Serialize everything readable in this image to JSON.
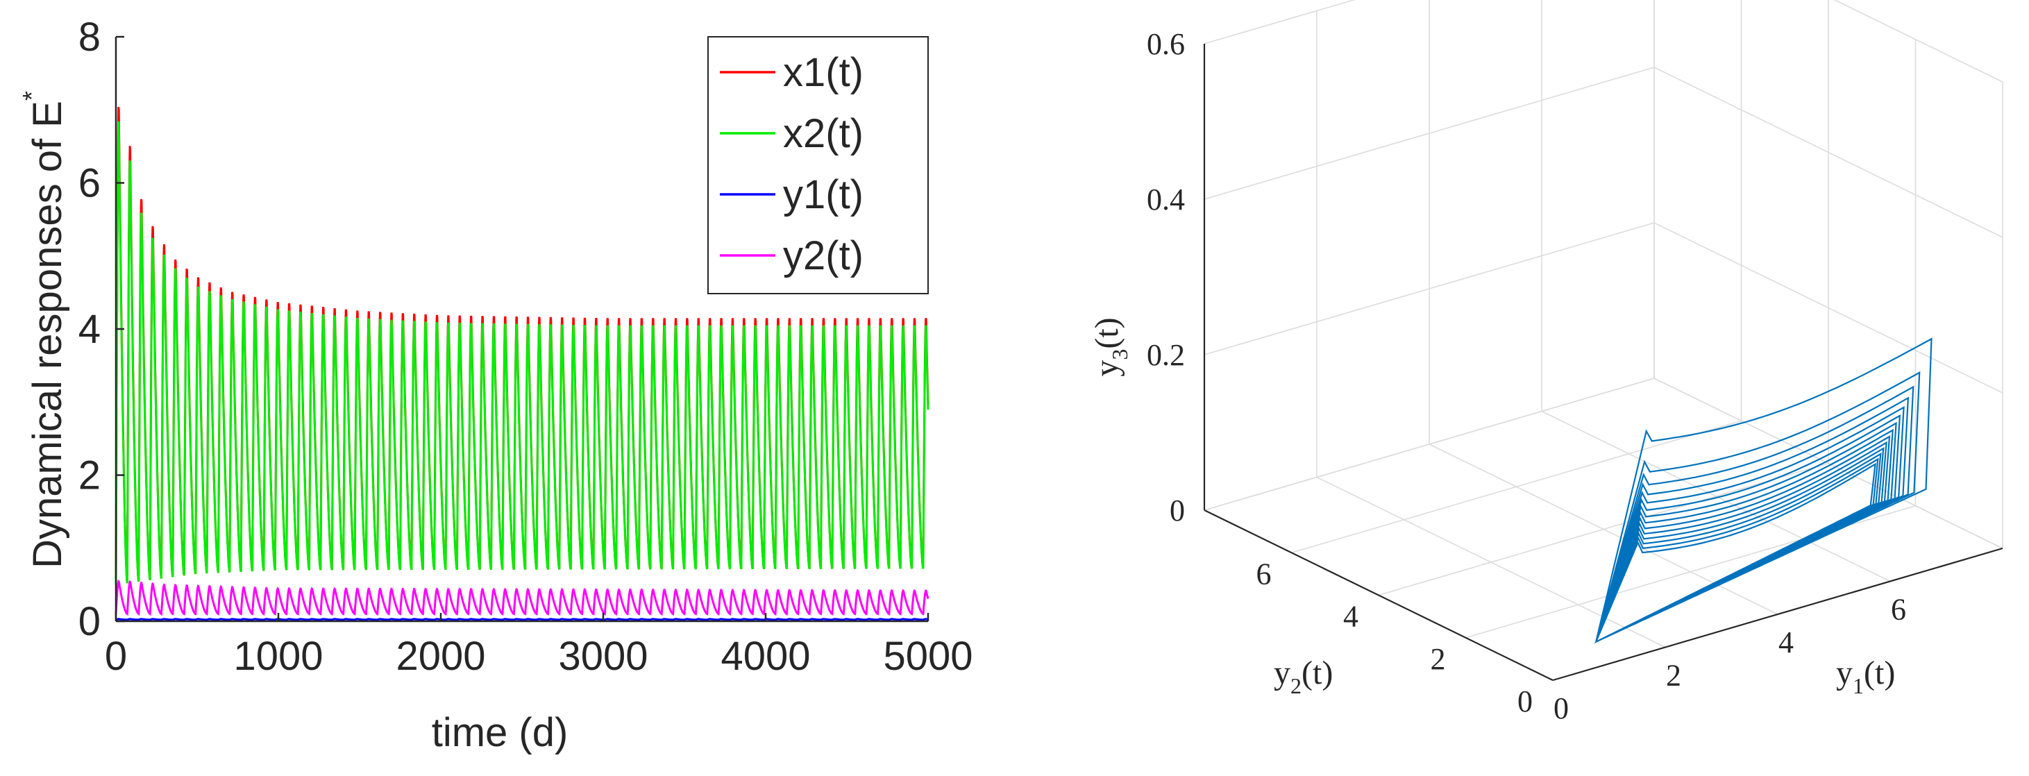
{
  "chart_data": [
    {
      "type": "line",
      "xlabel": "time (d)",
      "ylabel": "Dynamical responses of E",
      "ylabel_superscript": "*",
      "xlim": [
        0,
        5000
      ],
      "ylim": [
        0,
        8
      ],
      "xticks": [
        "0",
        "1000",
        "2000",
        "3000",
        "4000",
        "5000"
      ],
      "yticks": [
        "0",
        "2",
        "4",
        "6",
        "8"
      ],
      "xtick_values": [
        0,
        1000,
        2000,
        3000,
        4000,
        5000
      ],
      "ytick_values": [
        0,
        2,
        4,
        6,
        8
      ],
      "grid": false,
      "legend_position": "top-right",
      "period": 70,
      "series": [
        {
          "name": "x1(t)",
          "color": "#ff0000",
          "peaks": [
            [
              50,
              7.1
            ],
            [
              120,
              6.05
            ],
            [
              200,
              5.55
            ],
            [
              280,
              5.25
            ],
            [
              360,
              5.0
            ],
            [
              500,
              4.75
            ],
            [
              700,
              4.55
            ],
            [
              1000,
              4.4
            ],
            [
              1500,
              4.28
            ],
            [
              2000,
              4.22
            ],
            [
              3000,
              4.18
            ],
            [
              5000,
              4.18
            ]
          ],
          "troughs": [
            [
              0,
              0.5
            ],
            [
              500,
              0.65
            ],
            [
              1000,
              0.7
            ],
            [
              5000,
              0.72
            ]
          ]
        },
        {
          "name": "x2(t)",
          "color": "#00ee00",
          "peaks": [
            [
              50,
              6.9
            ],
            [
              120,
              5.85
            ],
            [
              200,
              5.38
            ],
            [
              280,
              5.1
            ],
            [
              360,
              4.88
            ],
            [
              500,
              4.62
            ],
            [
              700,
              4.45
            ],
            [
              1000,
              4.3
            ],
            [
              1500,
              4.18
            ],
            [
              2000,
              4.12
            ],
            [
              3000,
              4.08
            ],
            [
              5000,
              4.08
            ]
          ],
          "troughs": [
            [
              0,
              0.5
            ],
            [
              500,
              0.65
            ],
            [
              1000,
              0.7
            ],
            [
              5000,
              0.72
            ]
          ]
        },
        {
          "name": "y1(t)",
          "color": "#0000ff",
          "peaks": [
            [
              0,
              0.03
            ],
            [
              5000,
              0.03
            ]
          ],
          "troughs": [
            [
              0,
              0.02
            ],
            [
              5000,
              0.02
            ]
          ]
        },
        {
          "name": "y2(t)",
          "color": "#ff00ff",
          "peaks": [
            [
              50,
              0.55
            ],
            [
              300,
              0.5
            ],
            [
              1000,
              0.45
            ],
            [
              5000,
              0.42
            ]
          ],
          "troughs": [
            [
              0,
              0.1
            ],
            [
              5000,
              0.1
            ]
          ]
        }
      ]
    },
    {
      "type": "line3d",
      "xlabel": "y",
      "xlabel_sub": "1",
      "xlabel_suffix": "(t)",
      "ylabel": "y",
      "ylabel_sub": "2",
      "ylabel_suffix": "(t)",
      "zlabel": "y",
      "zlabel_sub": "3",
      "zlabel_suffix": "(t)",
      "x_ticks": [
        "0",
        "2",
        "4",
        "6"
      ],
      "y_ticks": [
        "0",
        "2",
        "4",
        "6"
      ],
      "z_ticks": [
        "0",
        "0.2",
        "0.4",
        "0.6"
      ],
      "xlim": [
        0,
        8
      ],
      "ylim": [
        0,
        8
      ],
      "zlim": [
        0,
        0.6
      ],
      "grid": true,
      "color": "#0072bd",
      "trajectory_outer": [
        [
          1.0,
          0.0,
          0.3
        ],
        [
          7.2,
          0.5,
          0.27
        ],
        [
          1.0,
          0.0,
          0.03
        ]
      ],
      "trajectory_limit": [
        [
          1.0,
          0.5,
          0.13
        ],
        [
          6.2,
          0.5,
          0.13
        ],
        [
          1.0,
          0.5,
          0.02
        ]
      ]
    }
  ]
}
